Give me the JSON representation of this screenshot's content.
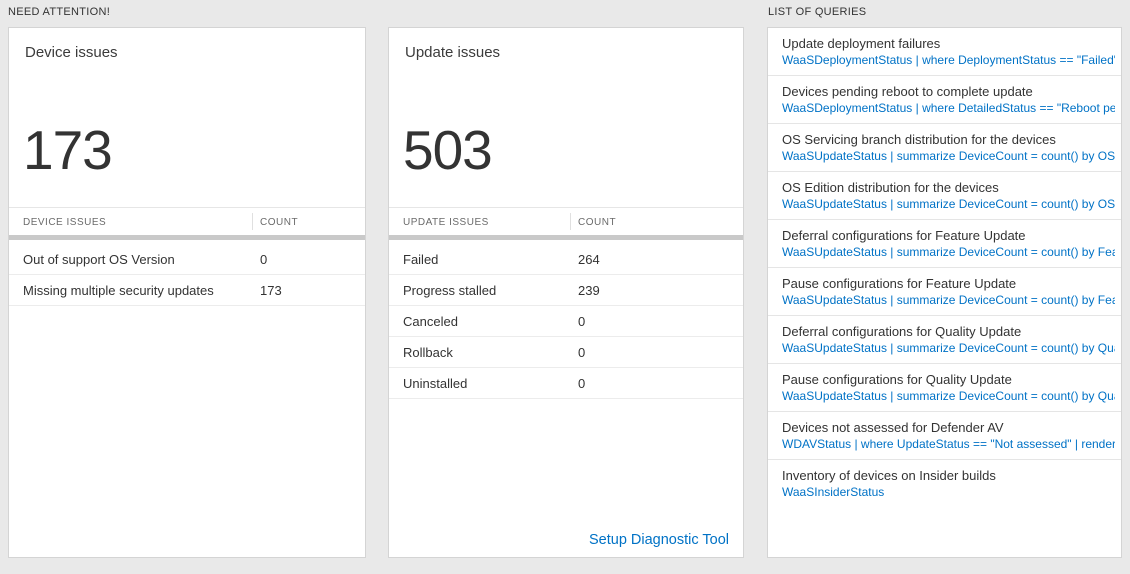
{
  "colors": {
    "accent_blue": "#0072c6",
    "big_number": "#333333"
  },
  "section_need_attention": {
    "label": "NEED ATTENTION!"
  },
  "section_queries": {
    "label": "LIST OF QUERIES"
  },
  "device_card": {
    "title": "Device issues",
    "count": "173",
    "col_label": "DEVICE ISSUES",
    "col_count": "COUNT",
    "rows": [
      {
        "label": "Out of support OS Version",
        "value": "0"
      },
      {
        "label": "Missing multiple security updates",
        "value": "173"
      }
    ]
  },
  "update_card": {
    "title": "Update issues",
    "count": "503",
    "col_label": "UPDATE ISSUES",
    "col_count": "COUNT",
    "rows": [
      {
        "label": "Failed",
        "value": "264"
      },
      {
        "label": "Progress stalled",
        "value": "239"
      },
      {
        "label": "Canceled",
        "value": "0"
      },
      {
        "label": "Rollback",
        "value": "0"
      },
      {
        "label": "Uninstalled",
        "value": "0"
      }
    ],
    "footer_link": "Setup Diagnostic Tool"
  },
  "queries": {
    "items": [
      {
        "title": "Update deployment failures",
        "query": "WaaSDeploymentStatus | where DeploymentStatus == \"Failed\" |..."
      },
      {
        "title": "Devices pending reboot to complete update",
        "query": "WaaSDeploymentStatus | where DetailedStatus == \"Reboot pend..."
      },
      {
        "title": "OS Servicing branch distribution for the devices",
        "query": "WaaSUpdateStatus | summarize DeviceCount = count() by OSSer..."
      },
      {
        "title": "OS Edition distribution for the devices",
        "query": "WaaSUpdateStatus | summarize DeviceCount = count() by OSEdit..."
      },
      {
        "title": "Deferral configurations for Feature Update",
        "query": "WaaSUpdateStatus | summarize DeviceCount = count() by Featur..."
      },
      {
        "title": "Pause configurations for Feature Update",
        "query": "WaaSUpdateStatus | summarize DeviceCount = count() by Featur..."
      },
      {
        "title": "Deferral configurations for Quality Update",
        "query": "WaaSUpdateStatus | summarize DeviceCount = count() by Qualit..."
      },
      {
        "title": "Pause configurations for Quality Update",
        "query": "WaaSUpdateStatus | summarize DeviceCount = count() by Qualit..."
      },
      {
        "title": "Devices not assessed for Defender AV",
        "query": "WDAVStatus | where UpdateStatus == \"Not assessed\" | render ta..."
      },
      {
        "title": "Inventory of devices on Insider builds",
        "query": "WaaSInsiderStatus"
      }
    ]
  }
}
